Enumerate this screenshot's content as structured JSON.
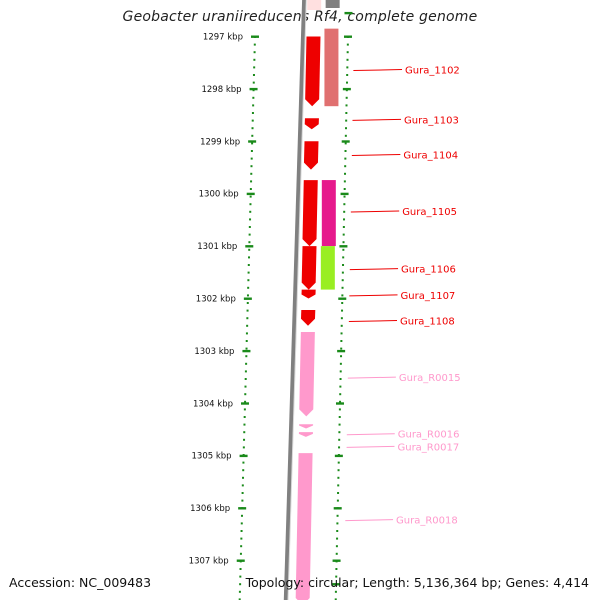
{
  "title": "Geobacter uraniireducens Rf4, complete genome",
  "footer": {
    "accession_label": "Accession:",
    "accession": "NC_009483",
    "topology_label": "Topology:",
    "topology": "circular",
    "length_label": "Length:",
    "length": "5,136,364 bp",
    "genes_label": "Genes:",
    "genes": "4,414"
  },
  "colors": {
    "gene": "#ee0000",
    "rna": "#ff99cc",
    "backbone": "#808080",
    "scale": "#1a8a1a",
    "cds_salmon": "#e07070",
    "cds_magenta": "#e6198c",
    "cds_lime": "#99ee22"
  },
  "chart_data": {
    "type": "genome-map",
    "scale_unit": "kbp",
    "scale_ticks": [
      {
        "value": 1297,
        "label": "1297 kbp"
      },
      {
        "value": 1298,
        "label": "1298 kbp"
      },
      {
        "value": 1299,
        "label": "1299 kbp"
      },
      {
        "value": 1300,
        "label": "1300 kbp"
      },
      {
        "value": 1301,
        "label": "1301 kbp"
      },
      {
        "value": 1302,
        "label": "1302 kbp"
      },
      {
        "value": 1303,
        "label": "1303 kbp"
      },
      {
        "value": 1304,
        "label": "1304 kbp"
      },
      {
        "value": 1305,
        "label": "1305 kbp"
      },
      {
        "value": 1306,
        "label": "1306 kbp"
      },
      {
        "value": 1307,
        "label": "1307 kbp"
      }
    ],
    "features": [
      {
        "label": "Gura_1102",
        "kind": "gene",
        "start": 1297.0,
        "end": 1298.33,
        "label_at": 1297.65,
        "cds": "salmon",
        "cds_start": 1296.85,
        "cds_end": 1298.33
      },
      {
        "label": "Gura_1103",
        "kind": "gene",
        "start": 1298.56,
        "end": 1298.77,
        "label_at": 1298.6
      },
      {
        "label": "Gura_1104",
        "kind": "gene",
        "start": 1299.0,
        "end": 1299.54,
        "label_at": 1299.27
      },
      {
        "label": "Gura_1105",
        "kind": "gene",
        "start": 1299.74,
        "end": 1301.0,
        "label_at": 1300.35,
        "cds": "magenta",
        "cds_start": 1299.74,
        "cds_end": 1301.0
      },
      {
        "label": "Gura_1106",
        "kind": "gene",
        "start": 1301.0,
        "end": 1301.83,
        "label_at": 1301.45,
        "cds": "lime",
        "cds_start": 1301.0,
        "cds_end": 1301.83
      },
      {
        "label": "Gura_1107",
        "kind": "gene",
        "start": 1301.83,
        "end": 1302.0,
        "label_at": 1301.95
      },
      {
        "label": "Gura_1108",
        "kind": "gene",
        "start": 1302.22,
        "end": 1302.52,
        "label_at": 1302.44
      },
      {
        "label": "Gura_R0015",
        "kind": "rna",
        "start": 1302.64,
        "end": 1304.25,
        "label_at": 1303.52
      },
      {
        "label": "Gura_R0016",
        "kind": "rna",
        "start": 1304.4,
        "end": 1304.48,
        "label_at": 1304.6
      },
      {
        "label": "Gura_R0017",
        "kind": "rna",
        "start": 1304.55,
        "end": 1304.64,
        "label_at": 1304.84
      },
      {
        "label": "Gura_R0018",
        "kind": "rna",
        "start": 1304.95,
        "end": 1307.85,
        "label_at": 1306.24
      }
    ]
  }
}
